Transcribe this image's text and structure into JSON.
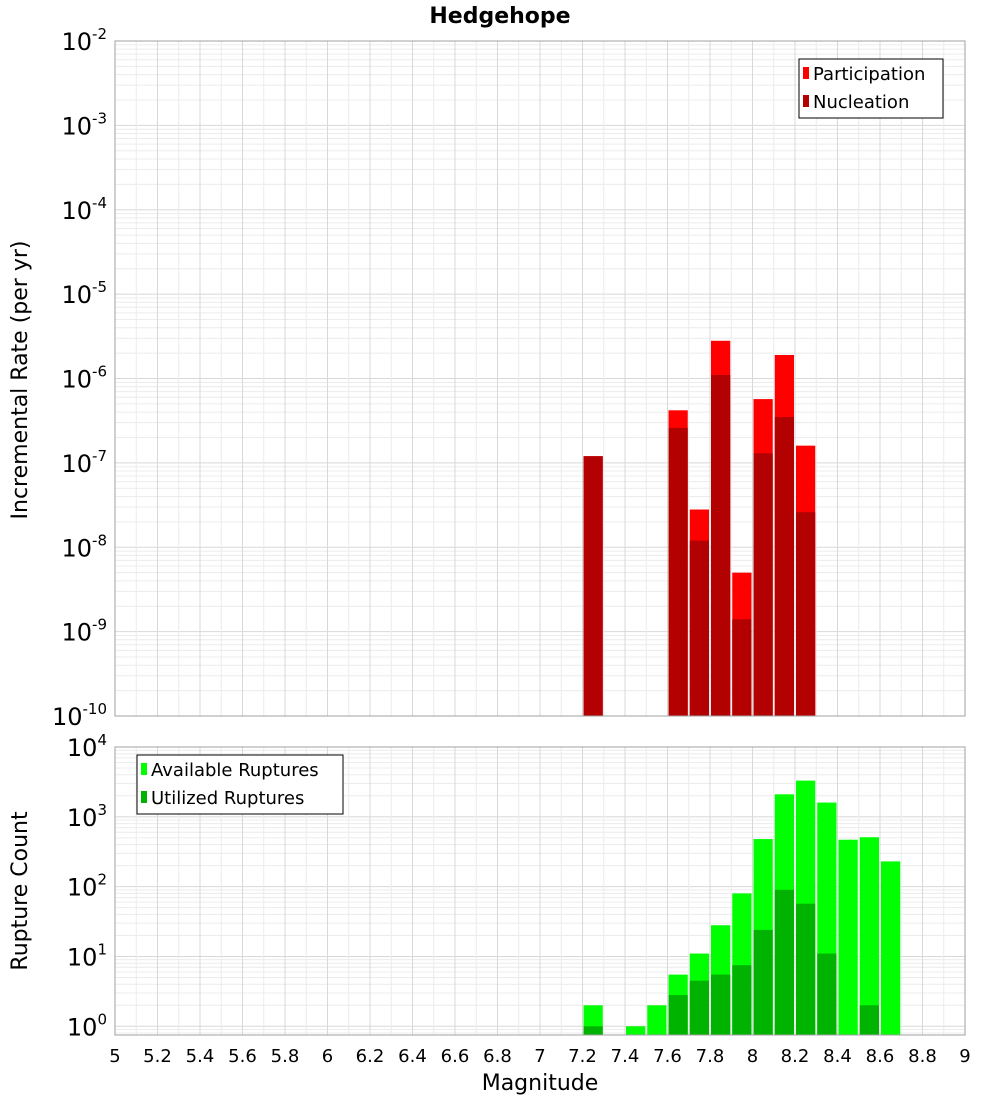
{
  "title": "Hedgehope",
  "chart_data": [
    {
      "type": "bar",
      "panel": "top",
      "ylabel": "Incremental Rate (per yr)",
      "yscale": "log",
      "ylim": [
        1e-10,
        0.01
      ],
      "ytick_exponents": [
        "-10",
        "-9",
        "-8",
        "-7",
        "-6",
        "-5",
        "-4",
        "-3",
        "-2"
      ],
      "xlim": [
        5,
        9
      ],
      "legend": "top-right",
      "grid": true,
      "series": [
        {
          "name": "Participation",
          "color": "#ff0000",
          "x": [
            7.25,
            7.65,
            7.75,
            7.85,
            7.95,
            8.05,
            8.15,
            8.25
          ],
          "values": [
            1.2e-07,
            4.2e-07,
            2.8e-08,
            2.8e-06,
            5e-09,
            5.7e-07,
            1.9e-06,
            1.6e-07
          ]
        },
        {
          "name": "Nucleation",
          "color": "#b30000",
          "x": [
            7.25,
            7.65,
            7.75,
            7.85,
            7.95,
            8.05,
            8.15,
            8.25
          ],
          "values": [
            1.2e-07,
            2.6e-07,
            1.2e-08,
            1.1e-06,
            1.4e-09,
            1.3e-07,
            3.5e-07,
            2.6e-08
          ]
        }
      ]
    },
    {
      "type": "bar",
      "panel": "bottom",
      "ylabel": "Rupture Count",
      "yscale": "log",
      "ylim": [
        0.75,
        10000
      ],
      "ytick_exponents": [
        "0",
        "1",
        "2",
        "3",
        "4"
      ],
      "xlabel": "Magnitude",
      "xlim": [
        5,
        9
      ],
      "xticks": [
        "5",
        "5.2",
        "5.4",
        "5.6",
        "5.8",
        "6",
        "6.2",
        "6.4",
        "6.6",
        "6.8",
        "7",
        "7.2",
        "7.4",
        "7.6",
        "7.8",
        "8",
        "8.2",
        "8.4",
        "8.6",
        "8.8",
        "9"
      ],
      "legend": "top-left",
      "grid": true,
      "series": [
        {
          "name": "Available Ruptures",
          "color": "#00ff00",
          "x": [
            7.25,
            7.45,
            7.55,
            7.65,
            7.75,
            7.85,
            7.95,
            8.05,
            8.15,
            8.25,
            8.35,
            8.45,
            8.55,
            8.65
          ],
          "values": [
            2,
            1,
            2,
            5.5,
            11,
            28,
            80,
            480,
            2100,
            3300,
            1600,
            470,
            510,
            230
          ]
        },
        {
          "name": "Utilized Ruptures",
          "color": "#00b300",
          "x": [
            7.25,
            7.65,
            7.75,
            7.85,
            7.95,
            8.05,
            8.15,
            8.25,
            8.35,
            8.55
          ],
          "values": [
            1,
            2.8,
            4.5,
            5.5,
            7.5,
            24,
            90,
            57,
            11,
            2
          ]
        }
      ]
    }
  ]
}
